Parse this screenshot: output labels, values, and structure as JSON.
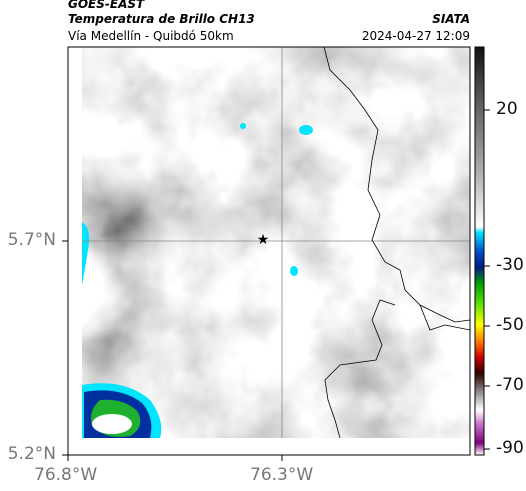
{
  "header": {
    "title": "GOES-EAST",
    "subtitle": "Temperatura de Brillo CH13",
    "route": "Vía Medellín - Quibdó 50km",
    "source": "SIATA",
    "datetime": "2024-04-27 12:09"
  },
  "map": {
    "lat_labels": [
      "5.7°N",
      "5.2°N"
    ],
    "lon_labels": [
      "76.8°W",
      "76.3°W"
    ]
  },
  "colorbar": {
    "labels": [
      "20",
      "-30",
      "-50",
      "-70",
      "-90"
    ]
  }
}
